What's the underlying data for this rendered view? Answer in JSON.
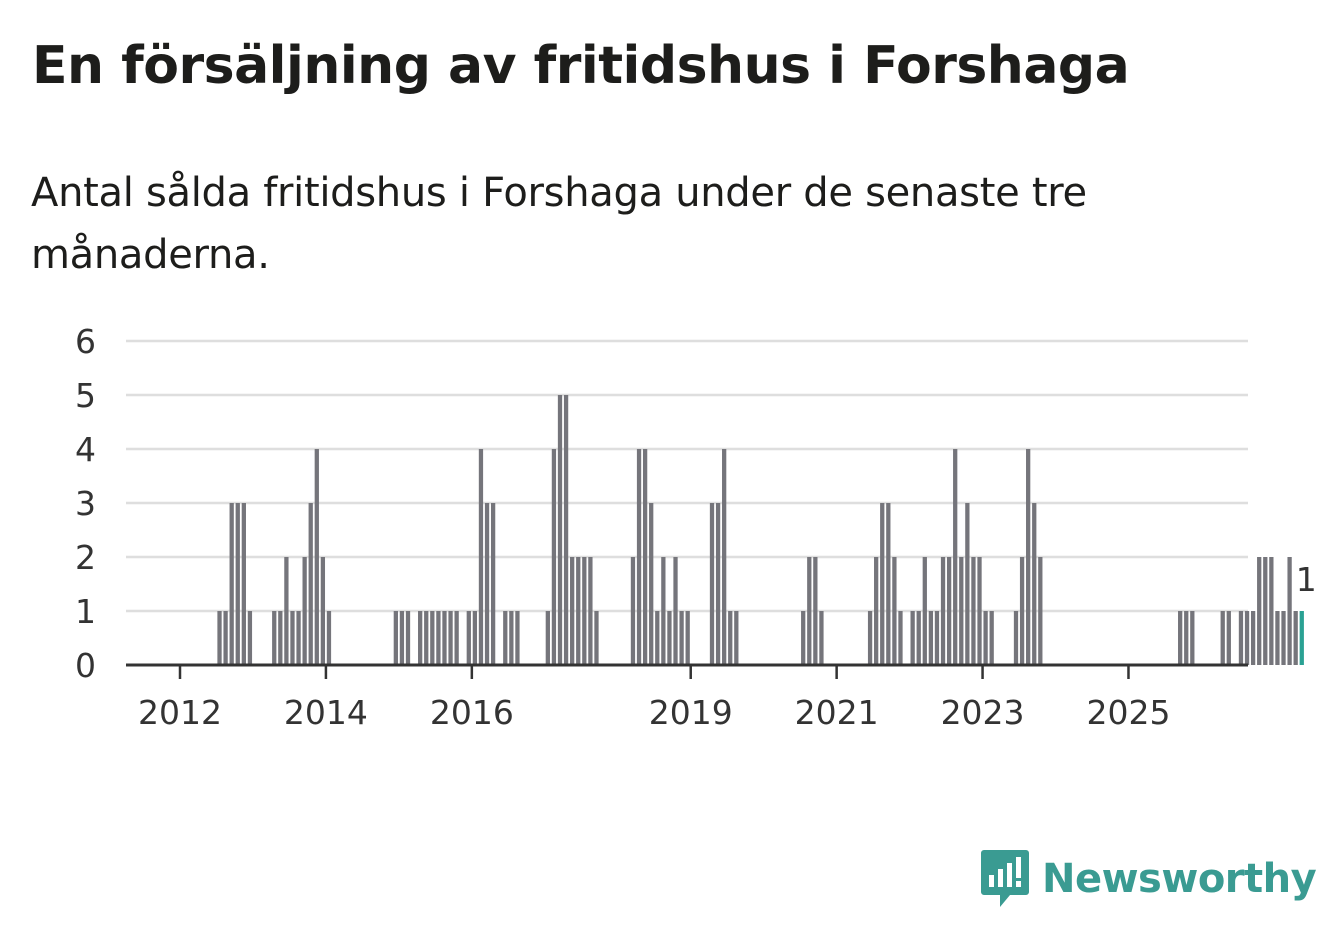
{
  "title": "En försäljning av fritidshus i Forshaga",
  "subtitle": "Antal sålda fritidshus i Forshaga under de senaste tre månaderna.",
  "logo_text": "Newsworthy",
  "colors": {
    "bar": "#75757b",
    "highlight": "#2aa193",
    "grid": "#dedede",
    "axis": "#333333",
    "brand": "#3a9b92"
  },
  "chart_data": {
    "type": "bar",
    "title": "",
    "xlabel": "",
    "ylabel": "",
    "ylim": [
      0,
      6
    ],
    "y_ticks": [
      0,
      1,
      2,
      3,
      4,
      5,
      6
    ],
    "x_ticks": [
      "2012",
      "2014",
      "2016",
      "2019",
      "2021",
      "2023",
      "2025"
    ],
    "grid": true,
    "start": "2011-04",
    "values": [
      0,
      0,
      0,
      0,
      0,
      0,
      0,
      0,
      0,
      0,
      0,
      0,
      0,
      0,
      0,
      1,
      1,
      3,
      3,
      3,
      1,
      0,
      0,
      0,
      1,
      1,
      2,
      1,
      1,
      2,
      3,
      4,
      2,
      1,
      0,
      0,
      0,
      0,
      0,
      0,
      0,
      0,
      0,
      0,
      1,
      1,
      1,
      0,
      1,
      1,
      1,
      1,
      1,
      1,
      1,
      0,
      1,
      1,
      4,
      3,
      3,
      0,
      1,
      1,
      1,
      0,
      0,
      0,
      0,
      1,
      4,
      5,
      5,
      2,
      2,
      2,
      2,
      1,
      0,
      0,
      0,
      0,
      0,
      2,
      4,
      4,
      3,
      1,
      2,
      1,
      2,
      1,
      1,
      0,
      0,
      0,
      3,
      3,
      4,
      1,
      1,
      0,
      0,
      0,
      0,
      0,
      0,
      0,
      0,
      0,
      0,
      1,
      2,
      2,
      1,
      0,
      0,
      0,
      0,
      0,
      0,
      0,
      1,
      2,
      3,
      3,
      2,
      1,
      0,
      1,
      1,
      2,
      1,
      1,
      2,
      2,
      4,
      2,
      3,
      2,
      2,
      1,
      1,
      0,
      0,
      0,
      1,
      2,
      4,
      3,
      2,
      0,
      0,
      0,
      0,
      0,
      0,
      0,
      0,
      0,
      0,
      0,
      0,
      0,
      0,
      0,
      0,
      0,
      0,
      0,
      0,
      0,
      0,
      1,
      1,
      1,
      0,
      0,
      0,
      0,
      1,
      1,
      0,
      1,
      1,
      1,
      2,
      2,
      2,
      1,
      1,
      2,
      1,
      1
    ],
    "highlight_last": true,
    "last_value_label": "1"
  }
}
